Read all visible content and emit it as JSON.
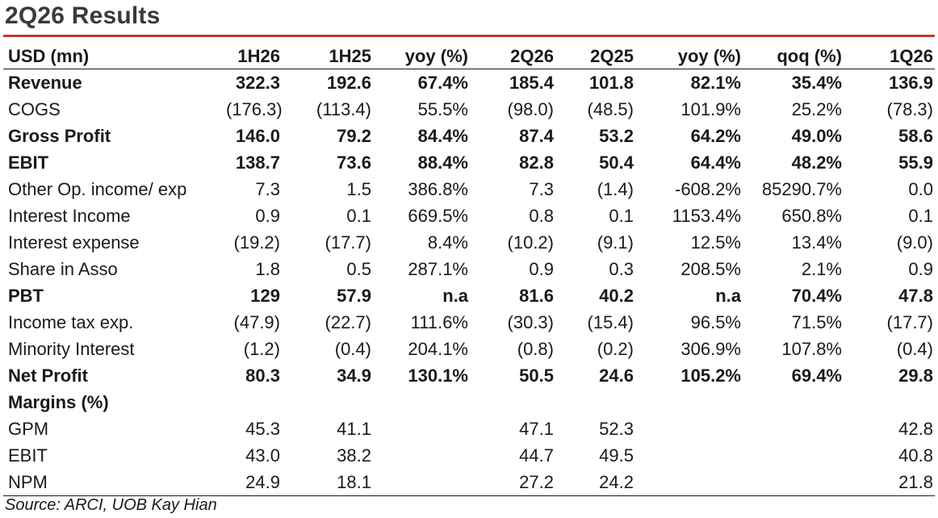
{
  "title": "2Q26 Results",
  "accent_color": "#c0392b",
  "table": {
    "headers": [
      "USD (mn)",
      "1H26",
      "1H25",
      "yoy (%)",
      "2Q26",
      "2Q25",
      "yoy (%)",
      "qoq (%)",
      "1Q26"
    ],
    "rows": [
      {
        "bold": true,
        "cells": [
          "Revenue",
          "322.3",
          "192.6",
          "67.4%",
          "185.4",
          "101.8",
          "82.1%",
          "35.4%",
          "136.9"
        ]
      },
      {
        "bold": false,
        "cells": [
          "COGS",
          "(176.3)",
          "(113.4)",
          "55.5%",
          "(98.0)",
          "(48.5)",
          "101.9%",
          "25.2%",
          "(78.3)"
        ]
      },
      {
        "bold": true,
        "cells": [
          "Gross Profit",
          "146.0",
          "79.2",
          "84.4%",
          "87.4",
          "53.2",
          "64.2%",
          "49.0%",
          "58.6"
        ]
      },
      {
        "bold": true,
        "cells": [
          "EBIT",
          "138.7",
          "73.6",
          "88.4%",
          "82.8",
          "50.4",
          "64.4%",
          "48.2%",
          "55.9"
        ]
      },
      {
        "bold": false,
        "cells": [
          "Other Op. income/ exp",
          "7.3",
          "1.5",
          "386.8%",
          "7.3",
          "(1.4)",
          "-608.2%",
          "85290.7%",
          "0.0"
        ]
      },
      {
        "bold": false,
        "cells": [
          "Interest Income",
          "0.9",
          "0.1",
          "669.5%",
          "0.8",
          "0.1",
          "1153.4%",
          "650.8%",
          "0.1"
        ]
      },
      {
        "bold": false,
        "cells": [
          "Interest expense",
          "(19.2)",
          "(17.7)",
          "8.4%",
          "(10.2)",
          "(9.1)",
          "12.5%",
          "13.4%",
          "(9.0)"
        ]
      },
      {
        "bold": false,
        "cells": [
          "Share in Asso",
          "1.8",
          "0.5",
          "287.1%",
          "0.9",
          "0.3",
          "208.5%",
          "2.1%",
          "0.9"
        ]
      },
      {
        "bold": true,
        "cells": [
          "PBT",
          "129",
          "57.9",
          "n.a",
          "81.6",
          "40.2",
          "n.a",
          "70.4%",
          "47.8"
        ]
      },
      {
        "bold": false,
        "cells": [
          "Income tax exp.",
          "(47.9)",
          "(22.7)",
          "111.6%",
          "(30.3)",
          "(15.4)",
          "96.5%",
          "71.5%",
          "(17.7)"
        ]
      },
      {
        "bold": false,
        "cells": [
          "Minority Interest",
          "(1.2)",
          "(0.4)",
          "204.1%",
          "(0.8)",
          "(0.2)",
          "306.9%",
          "107.8%",
          "(0.4)"
        ]
      },
      {
        "bold": true,
        "cells": [
          "Net Profit",
          "80.3",
          "34.9",
          "130.1%",
          "50.5",
          "24.6",
          "105.2%",
          "69.4%",
          "29.8"
        ]
      },
      {
        "bold": true,
        "cells": [
          "Margins (%)",
          "",
          "",
          "",
          "",
          "",
          "",
          "",
          ""
        ]
      },
      {
        "bold": false,
        "cells": [
          "GPM",
          "45.3",
          "41.1",
          "",
          "47.1",
          "52.3",
          "",
          "",
          "42.8"
        ]
      },
      {
        "bold": false,
        "cells": [
          "EBIT",
          "43.0",
          "38.2",
          "",
          "44.7",
          "49.5",
          "",
          "",
          "40.8"
        ]
      },
      {
        "bold": false,
        "cells": [
          "NPM",
          "24.9",
          "18.1",
          "",
          "27.2",
          "24.2",
          "",
          "",
          "21.8"
        ]
      }
    ]
  },
  "source": "Source: ARCI, UOB Kay Hian"
}
